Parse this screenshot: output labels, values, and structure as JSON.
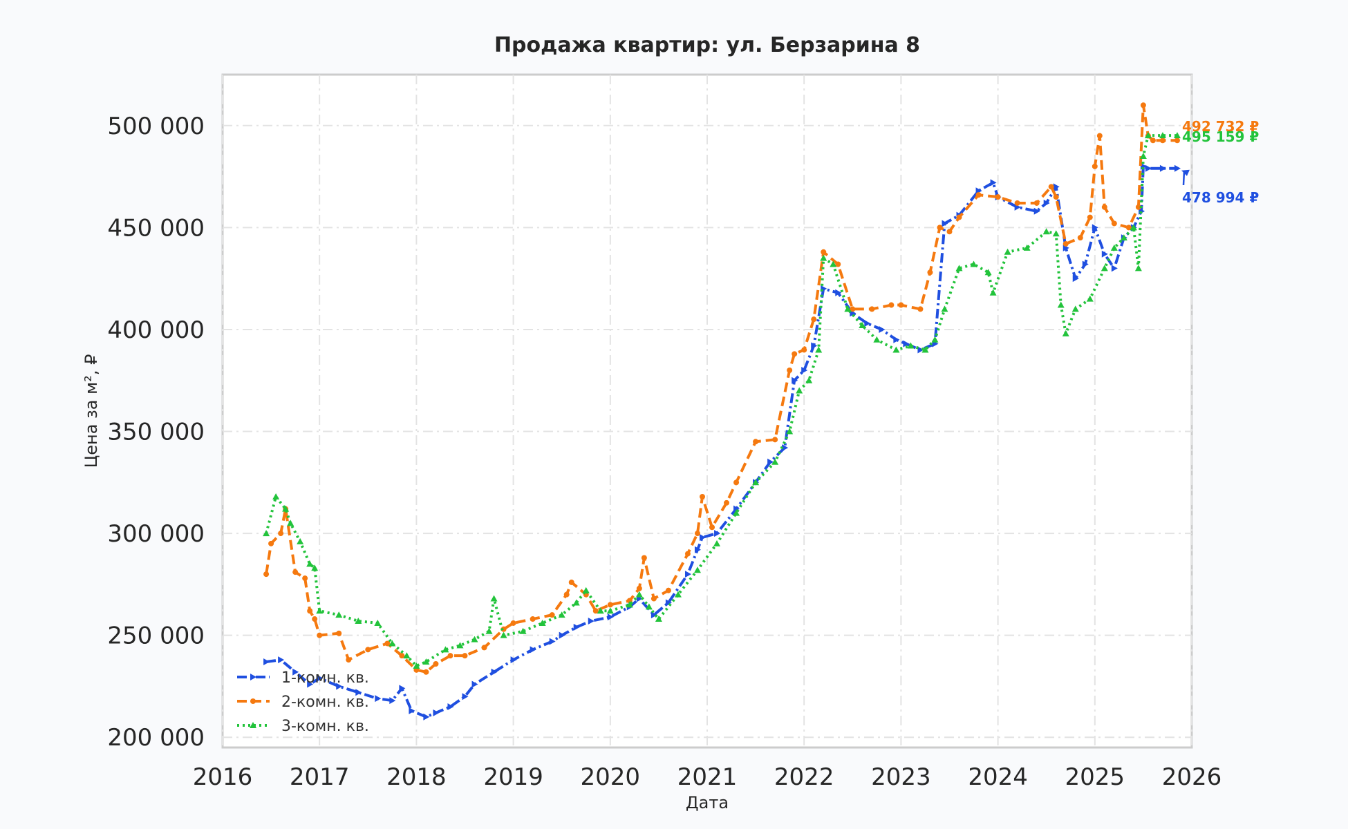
{
  "chart_data": {
    "type": "line",
    "title": "Продажа квартир: ул. Берзарина 8",
    "xlabel": "Дата",
    "ylabel": "Цена за м², ₽",
    "xlim": [
      2016.0,
      2026.0
    ],
    "ylim": [
      195000,
      525000
    ],
    "x_ticks": [
      2016,
      2017,
      2018,
      2019,
      2020,
      2021,
      2022,
      2023,
      2024,
      2025,
      2026
    ],
    "y_ticks": [
      200000,
      250000,
      300000,
      350000,
      400000,
      450000,
      500000
    ],
    "y_tick_labels": [
      "200 000",
      "250 000",
      "300 000",
      "350 000",
      "400 000",
      "450 000",
      "500 000"
    ],
    "grid": true,
    "legend_position": "lower-left",
    "series": [
      {
        "name": "1-комн. кв.",
        "color": "#1f4fe0",
        "style": "dashdot",
        "marker": "triangle-right",
        "end_label": "478 994 ₽",
        "x": [
          2016.45,
          2016.6,
          2016.75,
          2016.9,
          2017.0,
          2017.2,
          2017.4,
          2017.6,
          2017.75,
          2017.85,
          2017.95,
          2018.1,
          2018.2,
          2018.35,
          2018.5,
          2018.6,
          2018.8,
          2019.0,
          2019.2,
          2019.4,
          2019.5,
          2019.65,
          2019.8,
          2020.0,
          2020.2,
          2020.3,
          2020.45,
          2020.6,
          2020.8,
          2020.9,
          2020.95,
          2021.1,
          2021.3,
          2021.5,
          2021.65,
          2021.8,
          2021.9,
          2022.0,
          2022.1,
          2022.2,
          2022.35,
          2022.5,
          2022.65,
          2022.8,
          2022.95,
          2023.05,
          2023.2,
          2023.35,
          2023.45,
          2023.6,
          2023.8,
          2023.95,
          2024.0,
          2024.2,
          2024.4,
          2024.5,
          2024.6,
          2024.7,
          2024.8,
          2024.9,
          2025.0,
          2025.1,
          2025.2,
          2025.3,
          2025.4,
          2025.48,
          2025.5,
          2025.55,
          2025.7,
          2025.85
        ],
        "y": [
          237000,
          238000,
          232000,
          226000,
          229000,
          225000,
          222000,
          219000,
          218000,
          224000,
          213000,
          210000,
          212000,
          215000,
          220000,
          226000,
          232000,
          238000,
          243000,
          247000,
          250000,
          254000,
          257000,
          259000,
          264000,
          268000,
          260000,
          266000,
          280000,
          292000,
          298000,
          300000,
          312000,
          325000,
          335000,
          342000,
          375000,
          380000,
          392000,
          420000,
          418000,
          408000,
          403000,
          400000,
          395000,
          393000,
          390000,
          393000,
          452000,
          456000,
          468000,
          472000,
          465000,
          460000,
          458000,
          462000,
          470000,
          440000,
          425000,
          432000,
          450000,
          437000,
          430000,
          445000,
          450000,
          458000,
          480000,
          478994,
          478994,
          478994
        ]
      },
      {
        "name": "2-комн. кв.",
        "color": "#f5790f",
        "style": "dashed",
        "marker": "circle",
        "end_label": "492 732 ₽",
        "x": [
          2016.45,
          2016.5,
          2016.6,
          2016.65,
          2016.75,
          2016.85,
          2016.9,
          2016.95,
          2017.0,
          2017.2,
          2017.3,
          2017.5,
          2017.7,
          2017.85,
          2018.0,
          2018.1,
          2018.2,
          2018.35,
          2018.5,
          2018.7,
          2018.9,
          2019.0,
          2019.2,
          2019.4,
          2019.55,
          2019.6,
          2019.75,
          2019.85,
          2020.0,
          2020.2,
          2020.3,
          2020.35,
          2020.45,
          2020.6,
          2020.8,
          2020.9,
          2020.95,
          2021.05,
          2021.2,
          2021.3,
          2021.5,
          2021.7,
          2021.85,
          2021.9,
          2022.0,
          2022.1,
          2022.2,
          2022.35,
          2022.5,
          2022.7,
          2022.9,
          2023.0,
          2023.2,
          2023.3,
          2023.4,
          2023.5,
          2023.6,
          2023.8,
          2024.0,
          2024.2,
          2024.4,
          2024.55,
          2024.6,
          2024.7,
          2024.85,
          2024.95,
          2025.0,
          2025.05,
          2025.1,
          2025.2,
          2025.35,
          2025.45,
          2025.5,
          2025.55,
          2025.6,
          2025.7,
          2025.85
        ],
        "y": [
          280000,
          295000,
          300000,
          312000,
          281000,
          278000,
          262000,
          258000,
          250000,
          251000,
          238000,
          243000,
          246000,
          240000,
          233000,
          232000,
          236000,
          240000,
          240000,
          244000,
          253000,
          256000,
          258000,
          260000,
          270000,
          276000,
          270000,
          262000,
          265000,
          267000,
          273000,
          288000,
          268000,
          272000,
          290000,
          300000,
          318000,
          303000,
          315000,
          325000,
          345000,
          346000,
          380000,
          388000,
          390000,
          405000,
          438000,
          432000,
          410000,
          410000,
          412000,
          412000,
          410000,
          428000,
          450000,
          448000,
          455000,
          466000,
          465000,
          462000,
          462000,
          470000,
          465000,
          442000,
          445000,
          455000,
          480000,
          495000,
          460000,
          452000,
          450000,
          460000,
          510000,
          495000,
          492732,
          492732,
          492732
        ]
      },
      {
        "name": "3-комн. кв.",
        "color": "#22c33b",
        "style": "dotted",
        "marker": "triangle-up",
        "end_label": "495 159 ₽",
        "x": [
          2016.45,
          2016.55,
          2016.65,
          2016.7,
          2016.8,
          2016.9,
          2016.95,
          2017.0,
          2017.2,
          2017.4,
          2017.6,
          2017.75,
          2017.9,
          2018.0,
          2018.1,
          2018.3,
          2018.45,
          2018.6,
          2018.75,
          2018.8,
          2018.9,
          2019.1,
          2019.3,
          2019.5,
          2019.65,
          2019.75,
          2019.9,
          2020.0,
          2020.2,
          2020.3,
          2020.4,
          2020.5,
          2020.7,
          2020.9,
          2021.1,
          2021.3,
          2021.5,
          2021.7,
          2021.85,
          2021.95,
          2022.05,
          2022.15,
          2022.2,
          2022.3,
          2022.45,
          2022.6,
          2022.75,
          2022.95,
          2023.1,
          2023.25,
          2023.35,
          2023.45,
          2023.6,
          2023.75,
          2023.9,
          2023.95,
          2024.1,
          2024.3,
          2024.5,
          2024.6,
          2024.65,
          2024.7,
          2024.8,
          2024.95,
          2025.1,
          2025.2,
          2025.3,
          2025.4,
          2025.45,
          2025.5,
          2025.55,
          2025.7,
          2025.85
        ],
        "y": [
          300000,
          318000,
          312000,
          305000,
          296000,
          285000,
          283000,
          262000,
          260000,
          257000,
          256000,
          246000,
          240000,
          235000,
          237000,
          243000,
          245000,
          248000,
          252000,
          268000,
          250000,
          252000,
          256000,
          260000,
          266000,
          272000,
          262000,
          262000,
          265000,
          270000,
          264000,
          258000,
          270000,
          282000,
          295000,
          310000,
          325000,
          335000,
          350000,
          370000,
          375000,
          390000,
          435000,
          432000,
          410000,
          402000,
          395000,
          390000,
          392000,
          390000,
          395000,
          410000,
          430000,
          432000,
          428000,
          418000,
          438000,
          440000,
          448000,
          447000,
          412000,
          398000,
          410000,
          415000,
          430000,
          440000,
          445000,
          450000,
          430000,
          485000,
          495159,
          495159,
          495159
        ]
      }
    ]
  }
}
